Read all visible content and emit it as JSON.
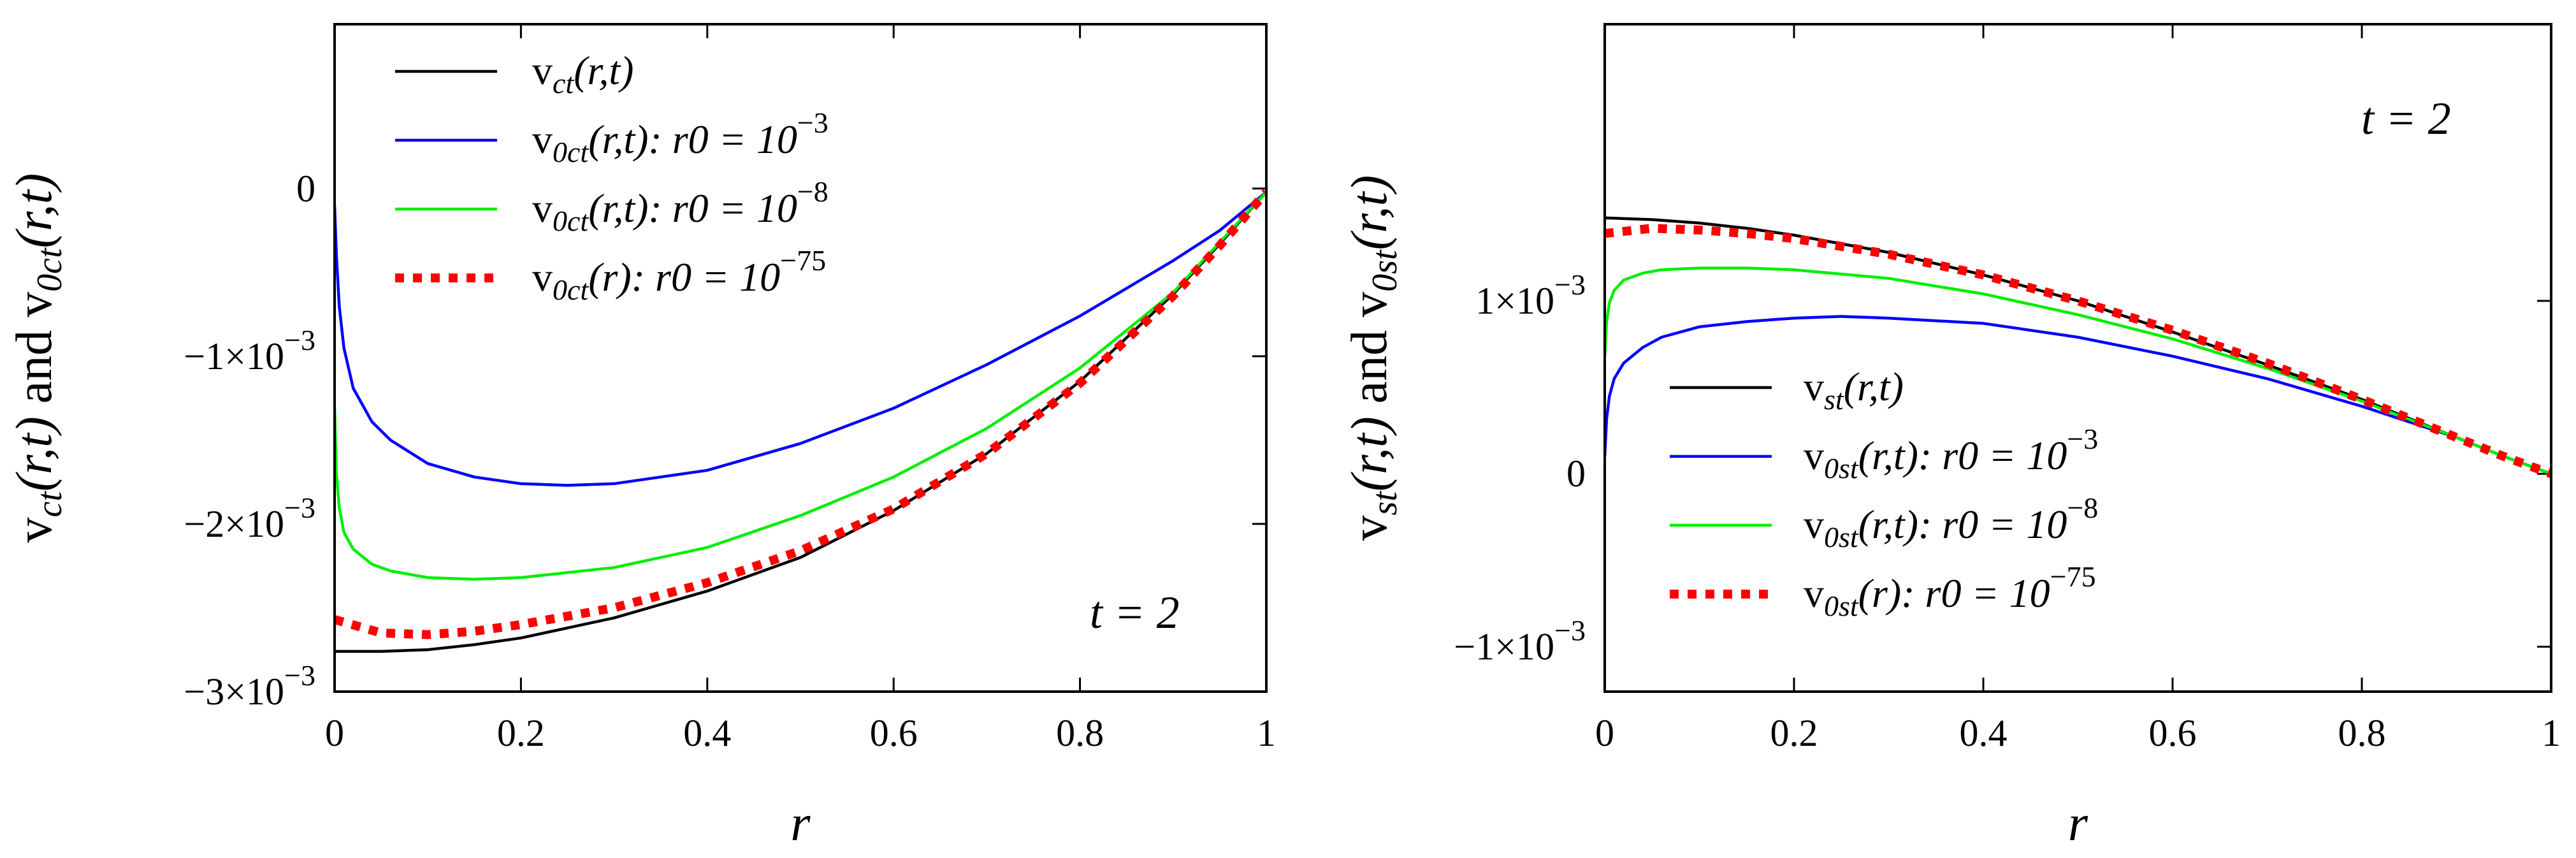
{
  "chart_data": [
    {
      "type": "line",
      "title": "",
      "xlabel": "r",
      "ylabel": "v_ct(r,t) and v_0ct(r,t)",
      "ylabel_parts": {
        "v1": "v",
        "sub1": "ct",
        "args1": "(r,t)",
        "mid": " and ",
        "v2": "v",
        "sub2": "0ct",
        "args2": "(r,t)"
      },
      "xlim": [
        0,
        1
      ],
      "ylim": [
        -0.003,
        0.00098
      ],
      "xticks": [
        {
          "value": 0,
          "label": "0"
        },
        {
          "value": 0.2,
          "label": "0.2"
        },
        {
          "value": 0.4,
          "label": "0.4"
        },
        {
          "value": 0.6,
          "label": "0.6"
        },
        {
          "value": 0.8,
          "label": "0.8"
        },
        {
          "value": 1,
          "label": "1"
        }
      ],
      "yticks": [
        {
          "value": 0,
          "label": "0",
          "exp": ""
        },
        {
          "value": -0.001,
          "label": "−1×10",
          "exp": "−3"
        },
        {
          "value": -0.002,
          "label": "−2×10",
          "exp": "−3"
        },
        {
          "value": -0.003,
          "label": "−3×10",
          "exp": "−3"
        }
      ],
      "annotation": "t = 2",
      "legend_position": "top-left",
      "legend": [
        {
          "v": "v",
          "sub": "ct",
          "args": "(r,t)",
          "cond": "",
          "exp": ""
        },
        {
          "v": "v",
          "sub": "0ct",
          "args": "(r,t)",
          "cond": ": r0 = 10",
          "exp": "−3"
        },
        {
          "v": "v",
          "sub": "0ct",
          "args": "(r,t)",
          "cond": ": r0 = 10",
          "exp": "−8"
        },
        {
          "v": "v",
          "sub": "0ct",
          "args": "(r)",
          "cond": ": r0 = 10",
          "exp": "−75"
        }
      ],
      "series": [
        {
          "name": "v_ct(r,t)",
          "color": "#000000",
          "style": "solid",
          "x": [
            0,
            0.05,
            0.1,
            0.15,
            0.2,
            0.3,
            0.4,
            0.5,
            0.6,
            0.7,
            0.8,
            0.9,
            0.95,
            1.0
          ],
          "y": [
            -0.00276,
            -0.00276,
            -0.00275,
            -0.00272,
            -0.00268,
            -0.00256,
            -0.0024,
            -0.0022,
            -0.00192,
            -0.00158,
            -0.00115,
            -0.00063,
            -0.00033,
            -2e-05
          ]
        },
        {
          "name": "v_0ct(r,t): r0 = 10^-3",
          "color": "#0000ff",
          "style": "solid",
          "x": [
            0,
            0.002,
            0.005,
            0.01,
            0.02,
            0.04,
            0.06,
            0.1,
            0.15,
            0.2,
            0.25,
            0.3,
            0.4,
            0.5,
            0.6,
            0.7,
            0.8,
            0.9,
            0.95,
            1.0
          ],
          "y": [
            -0.0001,
            -0.0004,
            -0.0007,
            -0.00095,
            -0.00119,
            -0.00139,
            -0.0015,
            -0.00164,
            -0.00172,
            -0.00176,
            -0.00177,
            -0.00176,
            -0.00168,
            -0.00152,
            -0.00131,
            -0.00105,
            -0.00076,
            -0.00043,
            -0.00025,
            -2e-05
          ]
        },
        {
          "name": "v_0ct(r,t): r0 = 10^-8",
          "color": "#00ee00",
          "style": "solid",
          "x": [
            0,
            0.002,
            0.005,
            0.01,
            0.02,
            0.04,
            0.06,
            0.1,
            0.15,
            0.2,
            0.3,
            0.4,
            0.5,
            0.6,
            0.7,
            0.8,
            0.9,
            0.95,
            1.0
          ],
          "y": [
            -0.0013,
            -0.0017,
            -0.0019,
            -0.00205,
            -0.00215,
            -0.00224,
            -0.00228,
            -0.00232,
            -0.00233,
            -0.00232,
            -0.00226,
            -0.00214,
            -0.00195,
            -0.00172,
            -0.00143,
            -0.00107,
            -0.00062,
            -0.00032,
            -2e-05
          ]
        },
        {
          "name": "v_0ct(r): r0 = 10^-75",
          "color": "#ff0000",
          "style": "dotted",
          "x": [
            0,
            0.05,
            0.1,
            0.15,
            0.2,
            0.3,
            0.4,
            0.5,
            0.6,
            0.7,
            0.8,
            0.9,
            0.95,
            1.0
          ],
          "y": [
            -0.00257,
            -0.00265,
            -0.00266,
            -0.00264,
            -0.0026,
            -0.0025,
            -0.00235,
            -0.00216,
            -0.00191,
            -0.00158,
            -0.00116,
            -0.00064,
            -0.00034,
            -2e-05
          ]
        }
      ]
    },
    {
      "type": "line",
      "title": "",
      "xlabel": "r",
      "ylabel": "v_st(r,t) and v_0st(r,t)",
      "ylabel_parts": {
        "v1": "v",
        "sub1": "st",
        "args1": "(r,t)",
        "mid": " and ",
        "v2": "v",
        "sub2": "0st",
        "args2": "(r,t)"
      },
      "xlim": [
        0,
        1
      ],
      "ylim": [
        -0.00126,
        0.0026
      ],
      "xticks": [
        {
          "value": 0,
          "label": "0"
        },
        {
          "value": 0.2,
          "label": "0.2"
        },
        {
          "value": 0.4,
          "label": "0.4"
        },
        {
          "value": 0.6,
          "label": "0.6"
        },
        {
          "value": 0.8,
          "label": "0.8"
        },
        {
          "value": 1,
          "label": "1"
        }
      ],
      "yticks": [
        {
          "value": 0.001,
          "label": "1×10",
          "exp": "−3"
        },
        {
          "value": 0,
          "label": "0",
          "exp": ""
        },
        {
          "value": -0.001,
          "label": "−1×10",
          "exp": "−3"
        }
      ],
      "annotation": "t = 2",
      "legend_position": "bottom-left",
      "legend": [
        {
          "v": "v",
          "sub": "st",
          "args": "(r,t)",
          "cond": "",
          "exp": ""
        },
        {
          "v": "v",
          "sub": "0st",
          "args": "(r,t)",
          "cond": ": r0 = 10",
          "exp": "−3"
        },
        {
          "v": "v",
          "sub": "0st",
          "args": "(r,t)",
          "cond": ": r0 = 10",
          "exp": "−8"
        },
        {
          "v": "v",
          "sub": "0st",
          "args": "(r)",
          "cond": ": r0 = 10",
          "exp": "−75"
        }
      ],
      "series": [
        {
          "name": "v_st(r,t)",
          "color": "#000000",
          "style": "solid",
          "x": [
            0,
            0.05,
            0.1,
            0.15,
            0.2,
            0.3,
            0.4,
            0.5,
            0.6,
            0.7,
            0.8,
            0.9,
            0.95,
            1.0
          ],
          "y": [
            0.00148,
            0.00147,
            0.00145,
            0.00142,
            0.00138,
            0.00128,
            0.00115,
            0.001,
            0.00082,
            0.00063,
            0.00043,
            0.00021,
            0.0001,
            0.0
          ]
        },
        {
          "name": "v_0st(r,t): r0 = 10^-3",
          "color": "#0000ff",
          "style": "solid",
          "x": [
            0,
            0.002,
            0.005,
            0.01,
            0.02,
            0.04,
            0.06,
            0.1,
            0.15,
            0.2,
            0.25,
            0.3,
            0.4,
            0.5,
            0.6,
            0.7,
            0.8,
            0.9,
            0.95,
            1.0
          ],
          "y": [
            0.0001,
            0.00032,
            0.00045,
            0.00055,
            0.00064,
            0.00073,
            0.00079,
            0.00085,
            0.00088,
            0.0009,
            0.00091,
            0.0009,
            0.00087,
            0.00079,
            0.00068,
            0.00055,
            0.00039,
            0.00021,
            0.0001,
            0.0
          ]
        },
        {
          "name": "v_0st(r,t): r0 = 10^-8",
          "color": "#00ee00",
          "style": "solid",
          "x": [
            0,
            0.002,
            0.005,
            0.01,
            0.02,
            0.04,
            0.06,
            0.1,
            0.15,
            0.2,
            0.3,
            0.4,
            0.5,
            0.6,
            0.7,
            0.8,
            0.9,
            0.95,
            1.0
          ],
          "y": [
            0.00068,
            0.00088,
            0.00099,
            0.00106,
            0.00112,
            0.00116,
            0.00118,
            0.00119,
            0.00119,
            0.00118,
            0.00113,
            0.00104,
            0.00092,
            0.00078,
            0.00061,
            0.00042,
            0.00021,
            0.0001,
            0.0
          ]
        },
        {
          "name": "v_0st(r): r0 = 10^-75",
          "color": "#ff0000",
          "style": "dotted",
          "x": [
            0,
            0.05,
            0.1,
            0.15,
            0.2,
            0.3,
            0.4,
            0.5,
            0.6,
            0.7,
            0.8,
            0.9,
            0.95,
            1.0
          ],
          "y": [
            0.00139,
            0.00142,
            0.00141,
            0.00139,
            0.00136,
            0.00127,
            0.00115,
            0.001,
            0.00083,
            0.00064,
            0.00043,
            0.00021,
            0.0001,
            0.0
          ]
        }
      ]
    }
  ]
}
